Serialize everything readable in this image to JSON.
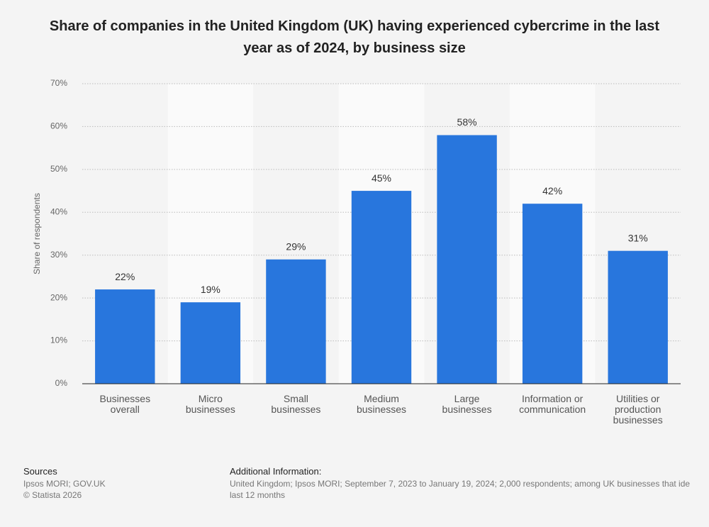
{
  "chart_data": {
    "type": "bar",
    "title": "Share of companies in the United Kingdom (UK) having experienced cybercrime in the last year as of 2024, by business size",
    "y_label": "Share of respondents",
    "categories": [
      "Businesses overall",
      "Micro businesses",
      "Small businesses",
      "Medium businesses",
      "Large businesses",
      "Information or communication",
      "Utilities or production businesses"
    ],
    "values": [
      22,
      19,
      29,
      45,
      58,
      42,
      31
    ],
    "value_labels": [
      "22%",
      "19%",
      "29%",
      "45%",
      "58%",
      "42%",
      "31%"
    ],
    "color": "#2876dd",
    "ylim": [
      0,
      70
    ],
    "yticks": [
      {
        "value": 0,
        "label": "0%"
      },
      {
        "value": 10,
        "label": "10%"
      },
      {
        "value": 20,
        "label": "20%"
      },
      {
        "value": 30,
        "label": "30%"
      },
      {
        "value": 40,
        "label": "40%"
      },
      {
        "value": 50,
        "label": "50%"
      },
      {
        "value": 60,
        "label": "60%"
      },
      {
        "value": 70,
        "label": "70%"
      }
    ],
    "grid": true
  },
  "footer": {
    "sources_title": "Sources",
    "sources": [
      "Ipsos MORI; GOV.UK",
      "© Statista 2026"
    ],
    "info_title": "Additional Information:",
    "info": [
      "United Kingdom; Ipsos MORI; September 7, 2023 to January 19, 2024; 2,000 respondents; among UK businesses that ide",
      "last 12 months"
    ]
  }
}
